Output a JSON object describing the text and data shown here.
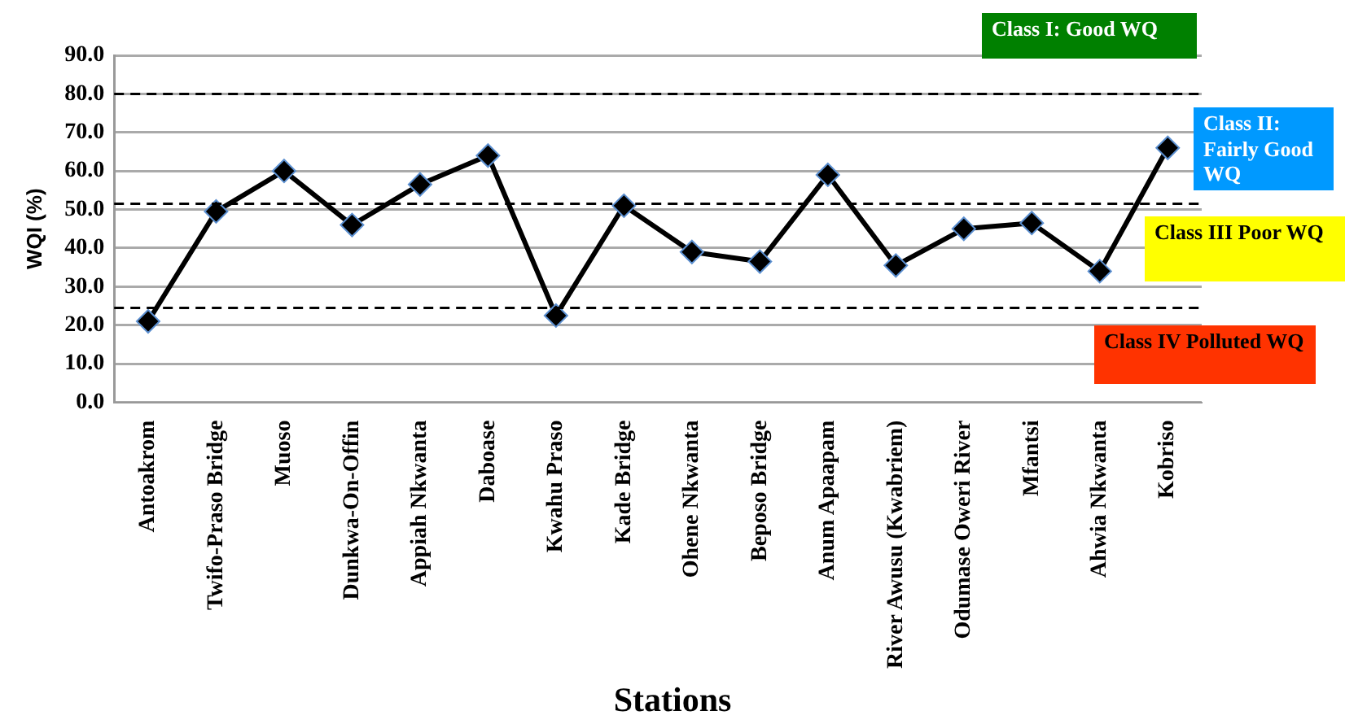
{
  "chart_data": {
    "type": "line",
    "xlabel": "Stations",
    "ylabel": "WQI (%)",
    "categories": [
      "Antoakrom",
      "Twifo-Praso Bridge",
      "Muoso",
      "Dunkwa-On-Offin",
      "Appiah Nkwanta",
      "Daboase",
      "Kwahu Praso",
      "Kade Bridge",
      "Ohene Nkwanta",
      "Beposo Bridge",
      "Anum Apaapam",
      "River Awusu (Kwabriem)",
      "Odumase Oweri River",
      "Mfantsi",
      "Ahwia Nkwanta",
      "Kobriso"
    ],
    "series": [
      {
        "color": "#000000",
        "values": [
          21,
          49.5,
          60,
          46,
          56.5,
          64,
          22.5,
          51,
          39,
          36.5,
          59,
          35.5,
          45,
          46.5,
          34,
          66
        ]
      }
    ],
    "ylim": [
      0,
      90
    ],
    "yticks": [
      {
        "value": 0,
        "label": "0.0"
      },
      {
        "value": 10,
        "label": "10.0"
      },
      {
        "value": 20,
        "label": "20.0"
      },
      {
        "value": 30,
        "label": "30.0"
      },
      {
        "value": 40,
        "label": "40.0"
      },
      {
        "value": 50,
        "label": "50.0"
      },
      {
        "value": 60,
        "label": "60.0"
      },
      {
        "value": 70,
        "label": "70.0"
      },
      {
        "value": 80,
        "label": "80.0"
      },
      {
        "value": 90,
        "label": "90.0"
      }
    ],
    "grid": "y",
    "legend": false,
    "marker": "diamond",
    "line_style": "solid",
    "ref_lines": [
      {
        "axis": "y",
        "value": 80,
        "color": "#000000",
        "line_style": "dashed"
      },
      {
        "axis": "y",
        "value": 51.5,
        "color": "#000000",
        "line_style": "dashed"
      },
      {
        "axis": "y",
        "value": 24.5,
        "color": "#000000",
        "line_style": "dashed"
      }
    ],
    "annotations": [
      "Class I:  Good WQ",
      "Class II: Fairly Good WQ",
      "Class III Poor WQ",
      "Class IV  Polluted WQ"
    ]
  }
}
